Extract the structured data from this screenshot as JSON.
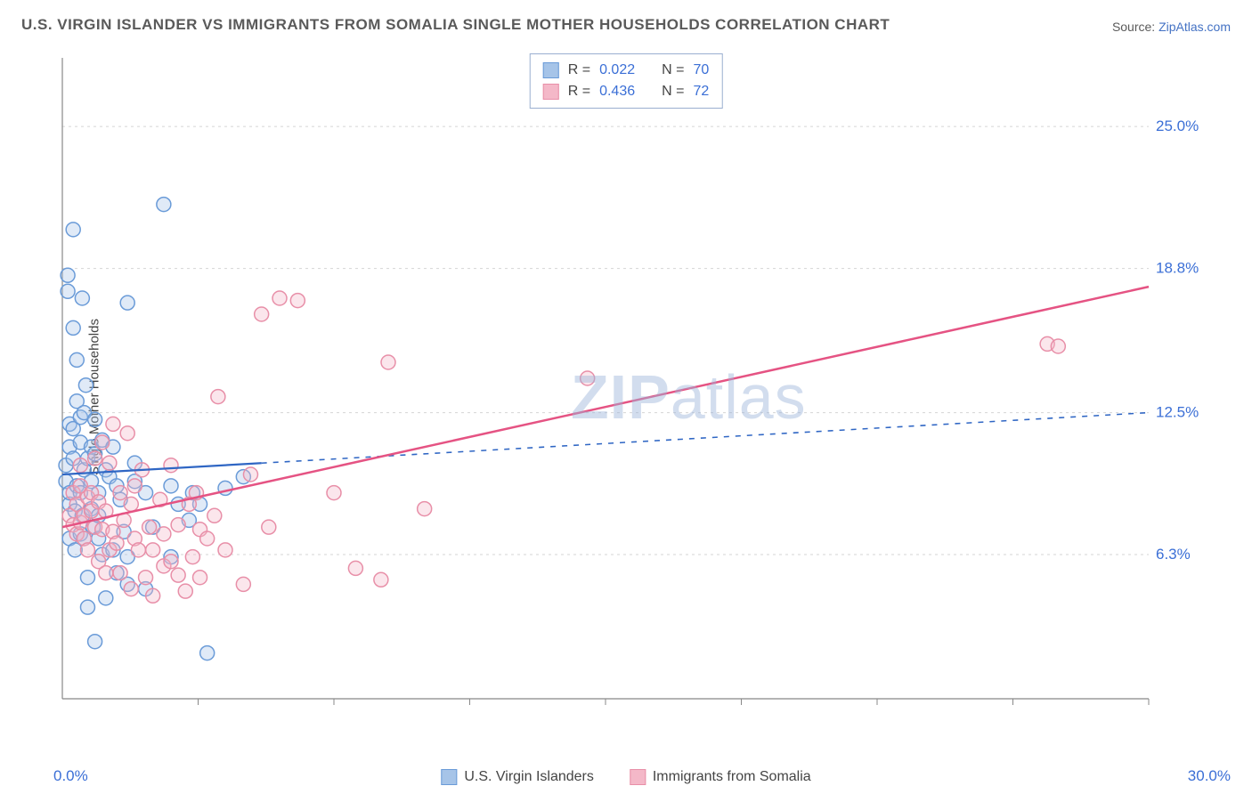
{
  "title": "U.S. VIRGIN ISLANDER VS IMMIGRANTS FROM SOMALIA SINGLE MOTHER HOUSEHOLDS CORRELATION CHART",
  "source_label": "Source:",
  "source_link": "ZipAtlas.com",
  "y_axis_label": "Single Mother Households",
  "watermark_bold": "ZIP",
  "watermark_light": "atlas",
  "chart": {
    "type": "scatter",
    "xlim": [
      0,
      30
    ],
    "ylim": [
      0,
      28
    ],
    "x_origin_label": "0.0%",
    "x_max_label": "30.0%",
    "x_ticks": [
      3.75,
      7.5,
      11.25,
      15,
      18.75,
      22.5,
      26.25,
      30
    ],
    "y_gridlines": [
      {
        "value": 6.3,
        "label": "6.3%"
      },
      {
        "value": 12.5,
        "label": "12.5%"
      },
      {
        "value": 18.8,
        "label": "18.8%"
      },
      {
        "value": 25.0,
        "label": "25.0%"
      }
    ],
    "background_color": "#ffffff",
    "grid_color": "#d5d5d5",
    "axis_color": "#888888",
    "marker_radius": 8,
    "marker_stroke_width": 1.5,
    "marker_fill_opacity": 0.35,
    "series": [
      {
        "name": "U.S. Virgin Islanders",
        "color_stroke": "#6a9bd8",
        "color_fill": "#a6c4e8",
        "r_value": "0.022",
        "n_value": "70",
        "trend": {
          "x1": 0,
          "y1": 9.8,
          "x2": 30,
          "y2": 12.5,
          "solid_until_x": 5.5,
          "line_color": "#2f66c4",
          "width": 2.2
        },
        "points": [
          [
            0.1,
            9.5
          ],
          [
            0.1,
            10.2
          ],
          [
            0.15,
            18.5
          ],
          [
            0.15,
            17.8
          ],
          [
            0.2,
            7.0
          ],
          [
            0.2,
            8.5
          ],
          [
            0.2,
            11.0
          ],
          [
            0.2,
            12.0
          ],
          [
            0.2,
            9.0
          ],
          [
            0.3,
            16.2
          ],
          [
            0.3,
            20.5
          ],
          [
            0.3,
            11.8
          ],
          [
            0.3,
            10.5
          ],
          [
            0.35,
            6.5
          ],
          [
            0.35,
            8.2
          ],
          [
            0.4,
            14.8
          ],
          [
            0.4,
            13.0
          ],
          [
            0.4,
            9.3
          ],
          [
            0.5,
            7.2
          ],
          [
            0.5,
            11.2
          ],
          [
            0.5,
            9.0
          ],
          [
            0.5,
            12.3
          ],
          [
            0.55,
            17.5
          ],
          [
            0.55,
            8.0
          ],
          [
            0.6,
            10.0
          ],
          [
            0.6,
            12.5
          ],
          [
            0.6,
            7.0
          ],
          [
            0.65,
            13.7
          ],
          [
            0.7,
            10.5
          ],
          [
            0.7,
            5.3
          ],
          [
            0.7,
            4.0
          ],
          [
            0.8,
            9.5
          ],
          [
            0.8,
            11.0
          ],
          [
            0.8,
            8.3
          ],
          [
            0.85,
            7.5
          ],
          [
            0.9,
            10.7
          ],
          [
            0.9,
            12.2
          ],
          [
            0.9,
            2.5
          ],
          [
            1.0,
            9.0
          ],
          [
            1.0,
            8.0
          ],
          [
            1.0,
            7.0
          ],
          [
            1.1,
            11.3
          ],
          [
            1.1,
            6.3
          ],
          [
            1.2,
            4.4
          ],
          [
            1.2,
            10.0
          ],
          [
            1.3,
            9.7
          ],
          [
            1.4,
            6.5
          ],
          [
            1.4,
            11.0
          ],
          [
            1.5,
            9.3
          ],
          [
            1.5,
            5.5
          ],
          [
            1.6,
            8.7
          ],
          [
            1.7,
            7.3
          ],
          [
            1.8,
            17.3
          ],
          [
            1.8,
            6.2
          ],
          [
            1.8,
            5.0
          ],
          [
            2.0,
            9.5
          ],
          [
            2.0,
            10.3
          ],
          [
            2.3,
            9.0
          ],
          [
            2.3,
            4.8
          ],
          [
            2.5,
            7.5
          ],
          [
            2.8,
            21.6
          ],
          [
            3.0,
            6.2
          ],
          [
            3.0,
            9.3
          ],
          [
            3.2,
            8.5
          ],
          [
            3.5,
            7.8
          ],
          [
            3.6,
            9.0
          ],
          [
            3.8,
            8.5
          ],
          [
            4.0,
            2.0
          ],
          [
            4.5,
            9.2
          ],
          [
            5.0,
            9.7
          ]
        ]
      },
      {
        "name": "Immigrants from Somalia",
        "color_stroke": "#e88fa8",
        "color_fill": "#f4b8c8",
        "r_value": "0.436",
        "n_value": "72",
        "trend": {
          "x1": 0,
          "y1": 7.5,
          "x2": 30,
          "y2": 18.0,
          "solid_until_x": 30,
          "line_color": "#e55383",
          "width": 2.5
        },
        "points": [
          [
            0.2,
            8.0
          ],
          [
            0.3,
            7.6
          ],
          [
            0.3,
            9.0
          ],
          [
            0.4,
            8.5
          ],
          [
            0.4,
            7.2
          ],
          [
            0.5,
            7.7
          ],
          [
            0.5,
            9.3
          ],
          [
            0.5,
            10.2
          ],
          [
            0.6,
            8.0
          ],
          [
            0.6,
            7.0
          ],
          [
            0.7,
            8.8
          ],
          [
            0.7,
            6.5
          ],
          [
            0.8,
            9.0
          ],
          [
            0.8,
            8.2
          ],
          [
            0.9,
            7.5
          ],
          [
            0.9,
            10.5
          ],
          [
            1.0,
            8.6
          ],
          [
            1.0,
            6.0
          ],
          [
            1.1,
            11.2
          ],
          [
            1.1,
            7.4
          ],
          [
            1.2,
            8.2
          ],
          [
            1.2,
            5.5
          ],
          [
            1.3,
            10.3
          ],
          [
            1.3,
            6.5
          ],
          [
            1.4,
            12.0
          ],
          [
            1.4,
            7.3
          ],
          [
            1.5,
            6.8
          ],
          [
            1.6,
            9.0
          ],
          [
            1.6,
            5.5
          ],
          [
            1.7,
            7.8
          ],
          [
            1.8,
            11.6
          ],
          [
            1.9,
            4.8
          ],
          [
            1.9,
            8.5
          ],
          [
            2.0,
            7.0
          ],
          [
            2.0,
            9.3
          ],
          [
            2.1,
            6.5
          ],
          [
            2.2,
            10.0
          ],
          [
            2.3,
            5.3
          ],
          [
            2.4,
            7.5
          ],
          [
            2.5,
            4.5
          ],
          [
            2.5,
            6.5
          ],
          [
            2.7,
            8.7
          ],
          [
            2.8,
            7.2
          ],
          [
            2.8,
            5.8
          ],
          [
            3.0,
            6.0
          ],
          [
            3.0,
            10.2
          ],
          [
            3.2,
            7.6
          ],
          [
            3.2,
            5.4
          ],
          [
            3.4,
            4.7
          ],
          [
            3.5,
            8.5
          ],
          [
            3.6,
            6.2
          ],
          [
            3.7,
            9.0
          ],
          [
            3.8,
            7.4
          ],
          [
            3.8,
            5.3
          ],
          [
            4.0,
            7.0
          ],
          [
            4.2,
            8.0
          ],
          [
            4.3,
            13.2
          ],
          [
            4.5,
            6.5
          ],
          [
            5.0,
            5.0
          ],
          [
            5.2,
            9.8
          ],
          [
            5.5,
            16.8
          ],
          [
            5.7,
            7.5
          ],
          [
            6.0,
            17.5
          ],
          [
            6.5,
            17.4
          ],
          [
            7.5,
            9.0
          ],
          [
            8.1,
            5.7
          ],
          [
            8.8,
            5.2
          ],
          [
            9.0,
            14.7
          ],
          [
            10.0,
            8.3
          ],
          [
            14.5,
            14.0
          ],
          [
            27.2,
            15.5
          ],
          [
            27.5,
            15.4
          ]
        ]
      }
    ]
  },
  "legend_top": {
    "r_label": "R =",
    "n_label": "N ="
  }
}
